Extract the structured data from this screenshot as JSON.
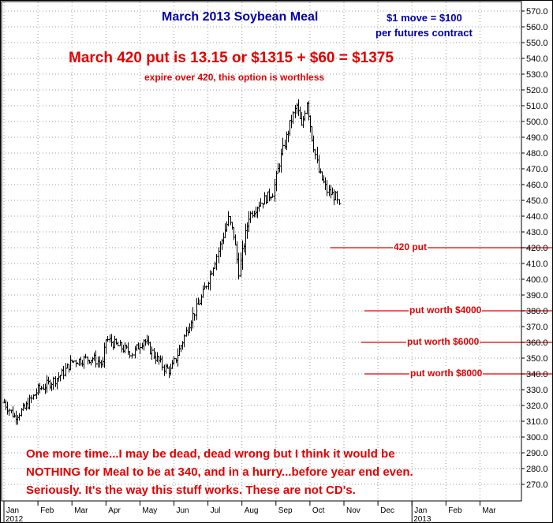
{
  "chart_data": {
    "type": "bar",
    "subtype": "ohlc",
    "title": "March 2013 Soybean Meal",
    "notes": [
      "$1 move = $100",
      "per futures contract"
    ],
    "headline": "March 420 put is 13.15 or $1315 + $60 = $1375",
    "subheadline": "expire over 420, this option is worthless",
    "comment": [
      "One more time...I may be dead, dead wrong but I think it would be",
      "NOTHING for Meal to be at 340, and in a hurry...before year end even.",
      "Seriously. It's the way this stuff works. These are not CD's."
    ],
    "ylim": [
      260,
      575
    ],
    "y_ticks": [
      270,
      280,
      290,
      300,
      310,
      320,
      330,
      340,
      350,
      360,
      370,
      380,
      390,
      400,
      410,
      420,
      430,
      440,
      450,
      460,
      470,
      480,
      490,
      500,
      510,
      520,
      530,
      540,
      550,
      560,
      570
    ],
    "x_months": [
      "Jan",
      "Feb",
      "Mar",
      "Apr",
      "May",
      "Jun",
      "Jul",
      "Aug",
      "Sep",
      "Oct",
      "Nov",
      "Dec",
      "Jan",
      "Feb",
      "Mar"
    ],
    "x_years": [
      "2012",
      "2013"
    ],
    "levels": [
      {
        "label": "420 put",
        "price": 420,
        "start_month": 9.6
      },
      {
        "label": "put  worth $4000",
        "price": 380,
        "start_month": 10.6
      },
      {
        "label": "put  worth $6000",
        "price": 360,
        "start_month": 10.5
      },
      {
        "label": "put  worth $8000",
        "price": 340,
        "start_month": 10.6
      }
    ],
    "keypoints": [
      [
        0.0,
        322
      ],
      [
        0.3,
        313
      ],
      [
        0.6,
        318
      ],
      [
        1.0,
        330
      ],
      [
        1.4,
        335
      ],
      [
        1.7,
        340
      ],
      [
        2.0,
        348
      ],
      [
        2.3,
        349
      ],
      [
        2.6,
        350
      ],
      [
        2.9,
        346
      ],
      [
        3.0,
        362
      ],
      [
        3.4,
        357
      ],
      [
        3.8,
        353
      ],
      [
        4.1,
        362
      ],
      [
        4.4,
        352
      ],
      [
        4.7,
        344
      ],
      [
        4.9,
        342
      ],
      [
        5.2,
        358
      ],
      [
        5.5,
        375
      ],
      [
        5.8,
        388
      ],
      [
        6.0,
        400
      ],
      [
        6.3,
        418
      ],
      [
        6.6,
        438
      ],
      [
        6.75,
        428
      ],
      [
        6.9,
        405
      ],
      [
        7.2,
        440
      ],
      [
        7.5,
        448
      ],
      [
        7.9,
        455
      ],
      [
        8.1,
        474
      ],
      [
        8.4,
        498
      ],
      [
        8.6,
        510
      ],
      [
        8.75,
        496
      ],
      [
        8.9,
        513
      ],
      [
        9.05,
        490
      ],
      [
        9.25,
        468
      ],
      [
        9.5,
        456
      ],
      [
        9.75,
        452
      ],
      [
        9.9,
        442
      ]
    ]
  }
}
